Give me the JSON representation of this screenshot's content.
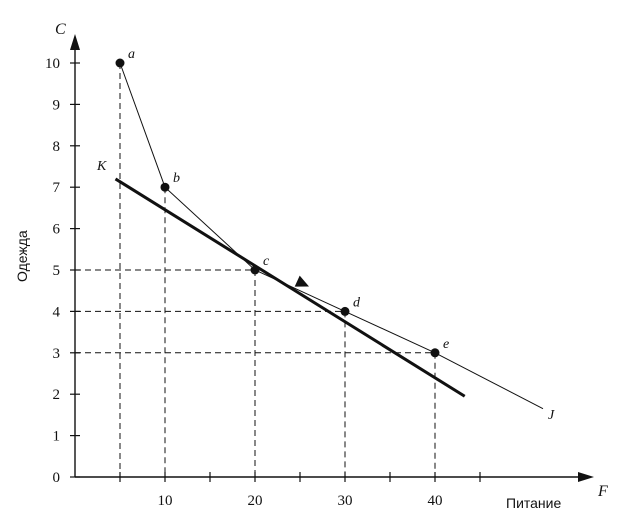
{
  "chart_data": {
    "type": "line",
    "ylabel": "Одежда",
    "xlabel": "Питание",
    "y_axis_letter": "C",
    "x_axis_letter": "F",
    "xlim": [
      0,
      48
    ],
    "ylim": [
      0,
      10.8
    ],
    "x_ticks": [
      10,
      20,
      30,
      40
    ],
    "x_tick_labels": [
      "10",
      "20",
      "30",
      "40"
    ],
    "y_ticks": [
      0,
      1,
      2,
      3,
      4,
      5,
      6,
      7,
      8,
      9,
      10
    ],
    "y_tick_labels": [
      "0",
      "1",
      "2",
      "3",
      "4",
      "5",
      "6",
      "7",
      "8",
      "9",
      "10"
    ],
    "grid": false,
    "points": [
      {
        "label": "a",
        "x": 5,
        "y": 10
      },
      {
        "label": "b",
        "x": 10,
        "y": 7
      },
      {
        "label": "c",
        "x": 20,
        "y": 5
      },
      {
        "label": "d",
        "x": 30,
        "y": 4
      },
      {
        "label": "e",
        "x": 40,
        "y": 3
      }
    ],
    "series": [
      {
        "name": "J",
        "x": [
          5,
          10,
          20,
          30,
          40,
          52
        ],
        "y": [
          10,
          7,
          5,
          4,
          3,
          1.65
        ]
      },
      {
        "name": "K",
        "x": [
          4.5,
          43.3
        ],
        "y": [
          7.2,
          1.95
        ]
      }
    ]
  }
}
